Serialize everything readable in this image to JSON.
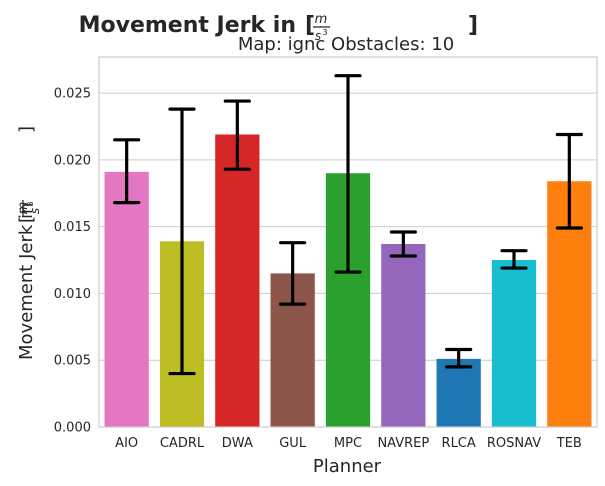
{
  "chart_data": {
    "type": "bar",
    "title": "Movement Jerk in",
    "title_unit": {
      "numerator": "m",
      "denominator": "s",
      "exponent": "3"
    },
    "subtitle": "Map: ignc Obstacles: 10",
    "xlabel": "Planner",
    "ylabel": "Movement Jerk in",
    "ylabel_unit": {
      "numerator": "m",
      "denominator": "s",
      "exponent": "3"
    },
    "categories": [
      "AIO",
      "CADRL",
      "DWA",
      "GUL",
      "MPC",
      "NAVREP",
      "RLCA",
      "ROSNAV",
      "TEB"
    ],
    "values": [
      0.0191,
      0.0139,
      0.0219,
      0.0115,
      0.019,
      0.0137,
      0.0051,
      0.0125,
      0.0184
    ],
    "error_low": [
      0.0168,
      0.004,
      0.0193,
      0.0092,
      0.0116,
      0.0128,
      0.0045,
      0.0119,
      0.0149
    ],
    "error_high": [
      0.0215,
      0.0238,
      0.0244,
      0.0138,
      0.0263,
      0.0146,
      0.0058,
      0.0132,
      0.0219
    ],
    "colors": [
      "#e377c2",
      "#bcbd22",
      "#d62728",
      "#8c564b",
      "#2ca02c",
      "#9467bd",
      "#1f77b4",
      "#17becf",
      "#ff7f0e"
    ],
    "yticks": [
      "0.000",
      "0.005",
      "0.010",
      "0.015",
      "0.020",
      "0.025"
    ],
    "ylim": [
      0,
      0.0277
    ],
    "grid": "horizontal",
    "errorbar_color": "#000000"
  }
}
